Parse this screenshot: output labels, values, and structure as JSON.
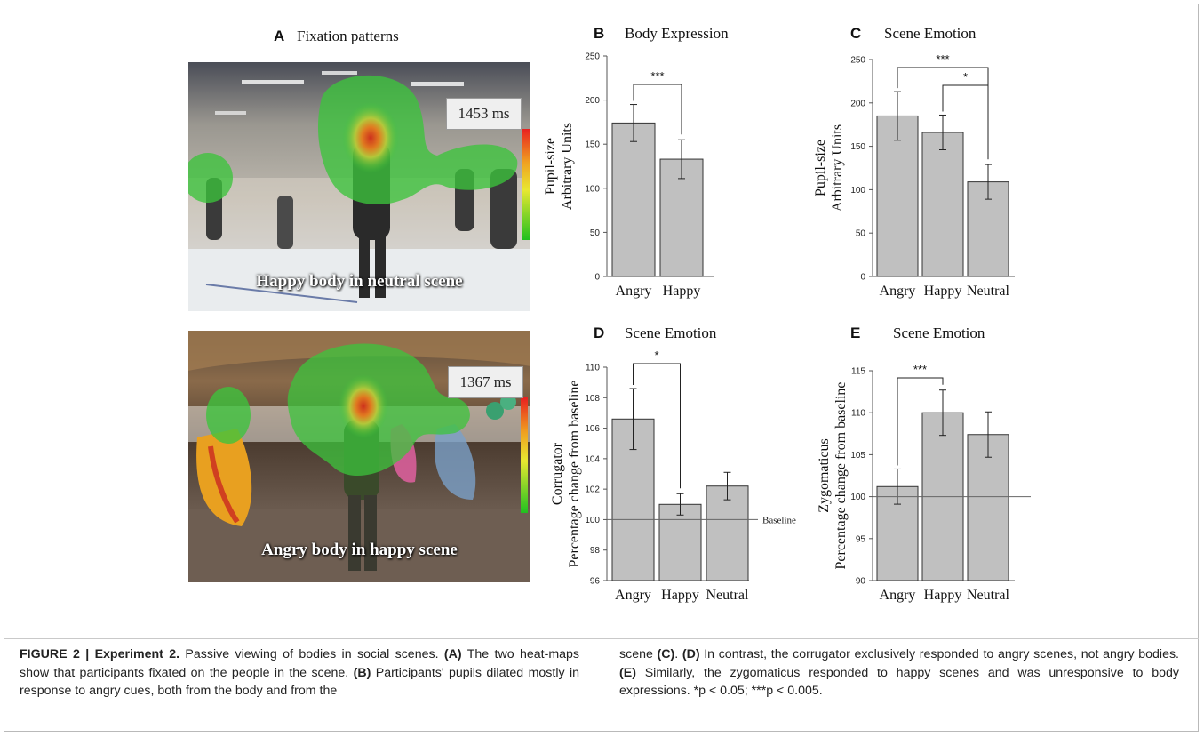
{
  "panel_a": {
    "label": "A",
    "title": "Fixation patterns",
    "photo_top": {
      "duration": "1453 ms",
      "caption": "Happy body in neutral scene"
    },
    "photo_bottom": {
      "duration": "1367 ms",
      "caption": "Angry body in happy scene"
    }
  },
  "colors": {
    "bar_fill": "#c0c0c0",
    "bar_stroke": "#333333",
    "heat_green": "#3cc43c",
    "heat_red": "#d42a1a"
  },
  "chart_data": [
    {
      "panel": "B",
      "type": "bar",
      "title": "Body Expression",
      "ylabel_lines": [
        "Pupil-size",
        "Arbitrary Units"
      ],
      "categories": [
        "Angry",
        "Happy"
      ],
      "values": [
        174,
        133
      ],
      "errors": [
        21,
        22
      ],
      "ylim": [
        0,
        250
      ],
      "yticks": [
        0,
        50,
        100,
        150,
        200,
        250
      ],
      "significance": [
        {
          "from": 0,
          "to": 1,
          "label": "***"
        }
      ]
    },
    {
      "panel": "C",
      "type": "bar",
      "title": "Scene Emotion",
      "ylabel_lines": [
        "Pupil-size",
        "Arbitrary Units"
      ],
      "categories": [
        "Angry",
        "Happy",
        "Neutral"
      ],
      "values": [
        185,
        166,
        109
      ],
      "errors": [
        28,
        20,
        20
      ],
      "ylim": [
        0,
        250
      ],
      "yticks": [
        0,
        50,
        100,
        150,
        200,
        250
      ],
      "significance": [
        {
          "from": 0,
          "to": 2,
          "label": "***"
        },
        {
          "from": 1,
          "to": 2,
          "label": "*"
        }
      ]
    },
    {
      "panel": "D",
      "type": "bar",
      "title": "Scene Emotion",
      "ylabel_lines": [
        "Corrugator",
        "Percentage change from baseline"
      ],
      "categories": [
        "Angry",
        "Happy",
        "Neutral"
      ],
      "values": [
        106.6,
        101.0,
        102.2
      ],
      "errors": [
        2.0,
        0.7,
        0.9
      ],
      "ylim": [
        96,
        110
      ],
      "yticks": [
        96,
        98,
        100,
        102,
        104,
        106,
        108,
        110
      ],
      "baseline": 100,
      "baseline_label": "Baseline",
      "significance": [
        {
          "from": 0,
          "to": 1,
          "label": "*"
        }
      ]
    },
    {
      "panel": "E",
      "type": "bar",
      "title": "Scene Emotion",
      "ylabel_lines": [
        "Zygomaticus",
        "Percentage change from baseline"
      ],
      "categories": [
        "Angry",
        "Happy",
        "Neutral"
      ],
      "values": [
        101.2,
        110.0,
        107.4
      ],
      "errors": [
        2.1,
        2.7,
        2.7
      ],
      "ylim": [
        90,
        115
      ],
      "yticks": [
        90,
        95,
        100,
        105,
        110,
        115
      ],
      "baseline": 100,
      "significance": [
        {
          "from": 0,
          "to": 1,
          "label": "***"
        }
      ]
    }
  ],
  "caption": {
    "figure_label": "FIGURE 2 | Experiment 2.",
    "col1": [
      {
        "t": " Passive viewing of bodies in social scenes. ",
        "b": false
      },
      {
        "t": "(A)",
        "b": true
      },
      {
        "t": " The two heat-maps show that participants fixated on the people in the scene. ",
        "b": false
      },
      {
        "t": "(B)",
        "b": true
      },
      {
        "t": " Participants' pupils dilated mostly in response to angry cues, both from the body and from the",
        "b": false
      }
    ],
    "col2": [
      {
        "t": "scene ",
        "b": false
      },
      {
        "t": "(C)",
        "b": true
      },
      {
        "t": ". ",
        "b": false
      },
      {
        "t": "(D)",
        "b": true
      },
      {
        "t": " In contrast, the corrugator exclusively responded to angry scenes, not angry bodies. ",
        "b": false
      },
      {
        "t": "(E)",
        "b": true
      },
      {
        "t": " Similarly, the zygomaticus responded to happy scenes and was unresponsive to body expressions.  *p < 0.05;  ***p < 0.005.",
        "b": false
      }
    ]
  }
}
